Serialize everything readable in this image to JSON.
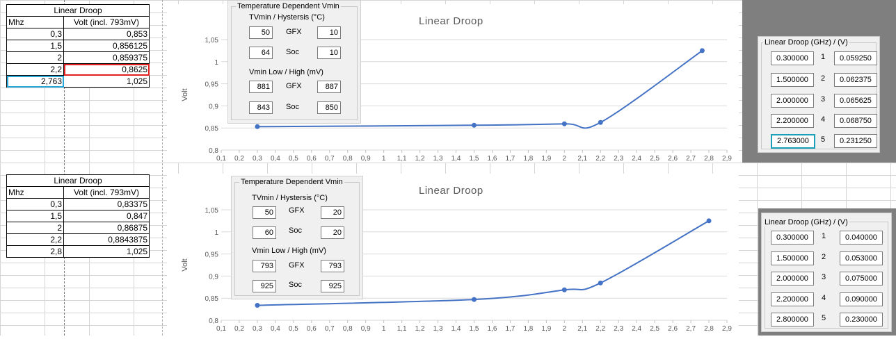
{
  "top": {
    "table": {
      "title": "Linear Droop",
      "headers": [
        "Mhz",
        "Volt (incl. 793mV)"
      ],
      "rows": [
        [
          "0,3",
          "0,853"
        ],
        [
          "1,5",
          "0,856125"
        ],
        [
          "2",
          "0,859375"
        ],
        [
          "2,2",
          "0,8625"
        ],
        [
          "2,763",
          "1,025"
        ]
      ]
    },
    "temp": {
      "legend": "Temperature Dependent Vmin",
      "tvmin_label": "TVmin / Hystersis (°C)",
      "vmin_label": "Vmin Low / High (mV)",
      "gfx": "GFX",
      "soc": "Soc",
      "tvmin_gfx": [
        "50",
        "10"
      ],
      "tvmin_soc": [
        "64",
        "10"
      ],
      "vmin_gfx": [
        "881",
        "887"
      ],
      "vmin_soc": [
        "843",
        "850"
      ]
    },
    "droop": {
      "legend": "Linear Droop (GHz) / (V)",
      "rows": [
        [
          "0.300000",
          "1",
          "0.059250"
        ],
        [
          "1.500000",
          "2",
          "0.062375"
        ],
        [
          "2.000000",
          "3",
          "0.065625"
        ],
        [
          "2.200000",
          "4",
          "0.068750"
        ],
        [
          "2.763000",
          "5",
          "0.231250"
        ]
      ]
    },
    "chart_data": {
      "type": "line",
      "title": "Linear Droop",
      "ylabel": "Volt",
      "x": [
        0.3,
        1.5,
        2.0,
        2.2,
        2.763
      ],
      "y": [
        0.853,
        0.856125,
        0.859375,
        0.8625,
        1.025
      ],
      "xlim": [
        0.1,
        2.9
      ],
      "ylim": [
        0.8,
        1.05
      ],
      "xticks": [
        "0,1",
        "0,2",
        "0,3",
        "0,4",
        "0,5",
        "0,6",
        "0,7",
        "0,8",
        "0,9",
        "1",
        "1,1",
        "1,2",
        "1,3",
        "1,4",
        "1,5",
        "1,6",
        "1,7",
        "1,8",
        "1,9",
        "2",
        "2,1",
        "2,2",
        "2,3",
        "2,4",
        "2,5",
        "2,6",
        "2,7",
        "2,8",
        "2,9"
      ],
      "yticks": [
        "0,8",
        "0,85",
        "0,9",
        "0,95",
        "1",
        "1,05"
      ],
      "grid": true,
      "color": "#4472c4"
    }
  },
  "bottom": {
    "table": {
      "title": "Linear Droop",
      "headers": [
        "Mhz",
        "Volt (incl. 793mV)"
      ],
      "rows": [
        [
          "0,3",
          "0,83375"
        ],
        [
          "1,5",
          "0,847"
        ],
        [
          "2",
          "0,86875"
        ],
        [
          "2,2",
          "0,8843875"
        ],
        [
          "2,8",
          "1,025"
        ]
      ]
    },
    "temp": {
      "legend": "Temperature Dependent Vmin",
      "tvmin_label": "TVmin / Hystersis (°C)",
      "vmin_label": "Vmin Low / High (mV)",
      "gfx": "GFX",
      "soc": "Soc",
      "tvmin_gfx": [
        "50",
        "20"
      ],
      "tvmin_soc": [
        "60",
        "20"
      ],
      "vmin_gfx": [
        "793",
        "793"
      ],
      "vmin_soc": [
        "925",
        "925"
      ]
    },
    "droop": {
      "legend": "Linear Droop (GHz) / (V)",
      "rows": [
        [
          "0.300000",
          "1",
          "0.040000"
        ],
        [
          "1.500000",
          "2",
          "0.053000"
        ],
        [
          "2.000000",
          "3",
          "0.075000"
        ],
        [
          "2.200000",
          "4",
          "0.090000"
        ],
        [
          "2.800000",
          "5",
          "0.230000"
        ]
      ]
    },
    "chart_data": {
      "type": "line",
      "title": "Linear Droop",
      "ylabel": "Volt",
      "x": [
        0.3,
        1.5,
        2.0,
        2.2,
        2.8
      ],
      "y": [
        0.83375,
        0.847,
        0.86875,
        0.8843875,
        1.025
      ],
      "xlim": [
        0.1,
        2.9
      ],
      "ylim": [
        0.8,
        1.05
      ],
      "xticks": [
        "0,1",
        "0,2",
        "0,3",
        "0,4",
        "0,5",
        "0,6",
        "0,7",
        "0,8",
        "0,9",
        "1",
        "1,1",
        "1,2",
        "1,3",
        "1,4",
        "1,5",
        "1,6",
        "1,7",
        "1,8",
        "1,9",
        "2",
        "2,1",
        "2,2",
        "2,3",
        "2,4",
        "2,5",
        "2,6",
        "2,7",
        "2,8",
        "2,9"
      ],
      "yticks": [
        "0,8",
        "0,85",
        "0,9",
        "0,95",
        "1",
        "1,05"
      ],
      "grid": true,
      "color": "#4472c4"
    }
  }
}
